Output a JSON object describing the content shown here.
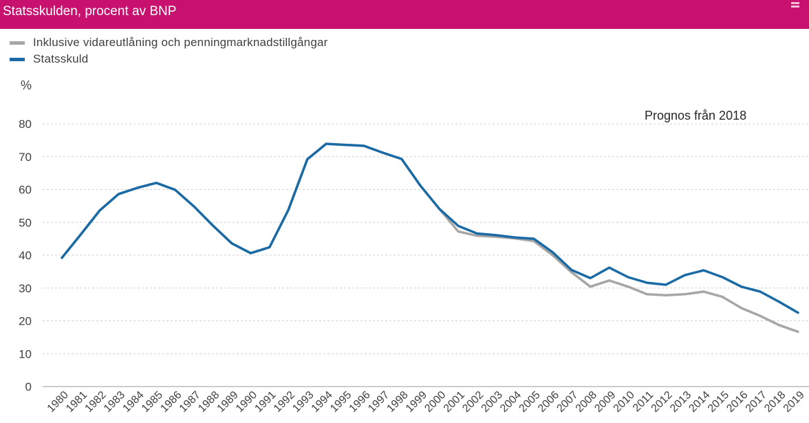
{
  "header": {
    "title": "Statsskulden, procent av BNP",
    "icon": "export-icon"
  },
  "colors": {
    "header_bg": "#c8106e",
    "series_gross": "#a6a6a6",
    "series_debt": "#1a6aa5",
    "grid": "#cfcfcf"
  },
  "chart_data": {
    "type": "line",
    "title": "Statsskulden, procent av BNP",
    "ylabel": "%",
    "xlabel": "",
    "ylim": [
      0,
      80
    ],
    "yticks": [
      0,
      10,
      20,
      30,
      40,
      50,
      60,
      70,
      80
    ],
    "grid": true,
    "legend_position": "top-left",
    "annotation": "Prognos från 2018",
    "x": [
      "1980",
      "1981",
      "1982",
      "1983",
      "1984",
      "1985",
      "1986",
      "1987",
      "1988",
      "1989",
      "1990",
      "1991",
      "1992",
      "1993",
      "1994",
      "1995",
      "1996",
      "1997",
      "1998",
      "1999",
      "2000",
      "2001",
      "2002",
      "2003",
      "2004",
      "2005",
      "2006",
      "2007",
      "2008",
      "2009",
      "2010",
      "2011",
      "2012",
      "2013",
      "2014",
      "2015",
      "2016",
      "2017",
      "2018",
      "2019"
    ],
    "series": [
      {
        "name": "Inklusive vidareutlåning och penningmarknadstillgångar",
        "color": "#a6a6a6",
        "values": [
          39.2,
          46.3,
          53.6,
          58.6,
          60.5,
          62.0,
          59.9,
          54.8,
          49.0,
          43.6,
          40.6,
          42.4,
          53.8,
          69.2,
          73.9,
          73.6,
          73.3,
          71.2,
          69.3,
          61.1,
          54.1,
          47.2,
          45.9,
          45.6,
          45.1,
          44.3,
          40.0,
          34.8,
          30.4,
          32.3,
          30.4,
          28.1,
          27.8,
          28.1,
          28.9,
          27.3,
          23.9,
          21.5,
          18.7,
          16.7
        ]
      },
      {
        "name": "Statsskuld",
        "color": "#1a6aa5",
        "values": [
          39.2,
          46.3,
          53.6,
          58.6,
          60.5,
          62.0,
          59.9,
          54.8,
          49.0,
          43.6,
          40.6,
          42.4,
          53.8,
          69.2,
          73.9,
          73.6,
          73.3,
          71.2,
          69.3,
          61.1,
          54.1,
          48.9,
          46.6,
          46.1,
          45.4,
          45.0,
          40.9,
          35.5,
          33.0,
          36.2,
          33.3,
          31.6,
          31.0,
          33.9,
          35.4,
          33.3,
          30.4,
          28.9,
          25.8,
          22.5
        ]
      }
    ]
  }
}
